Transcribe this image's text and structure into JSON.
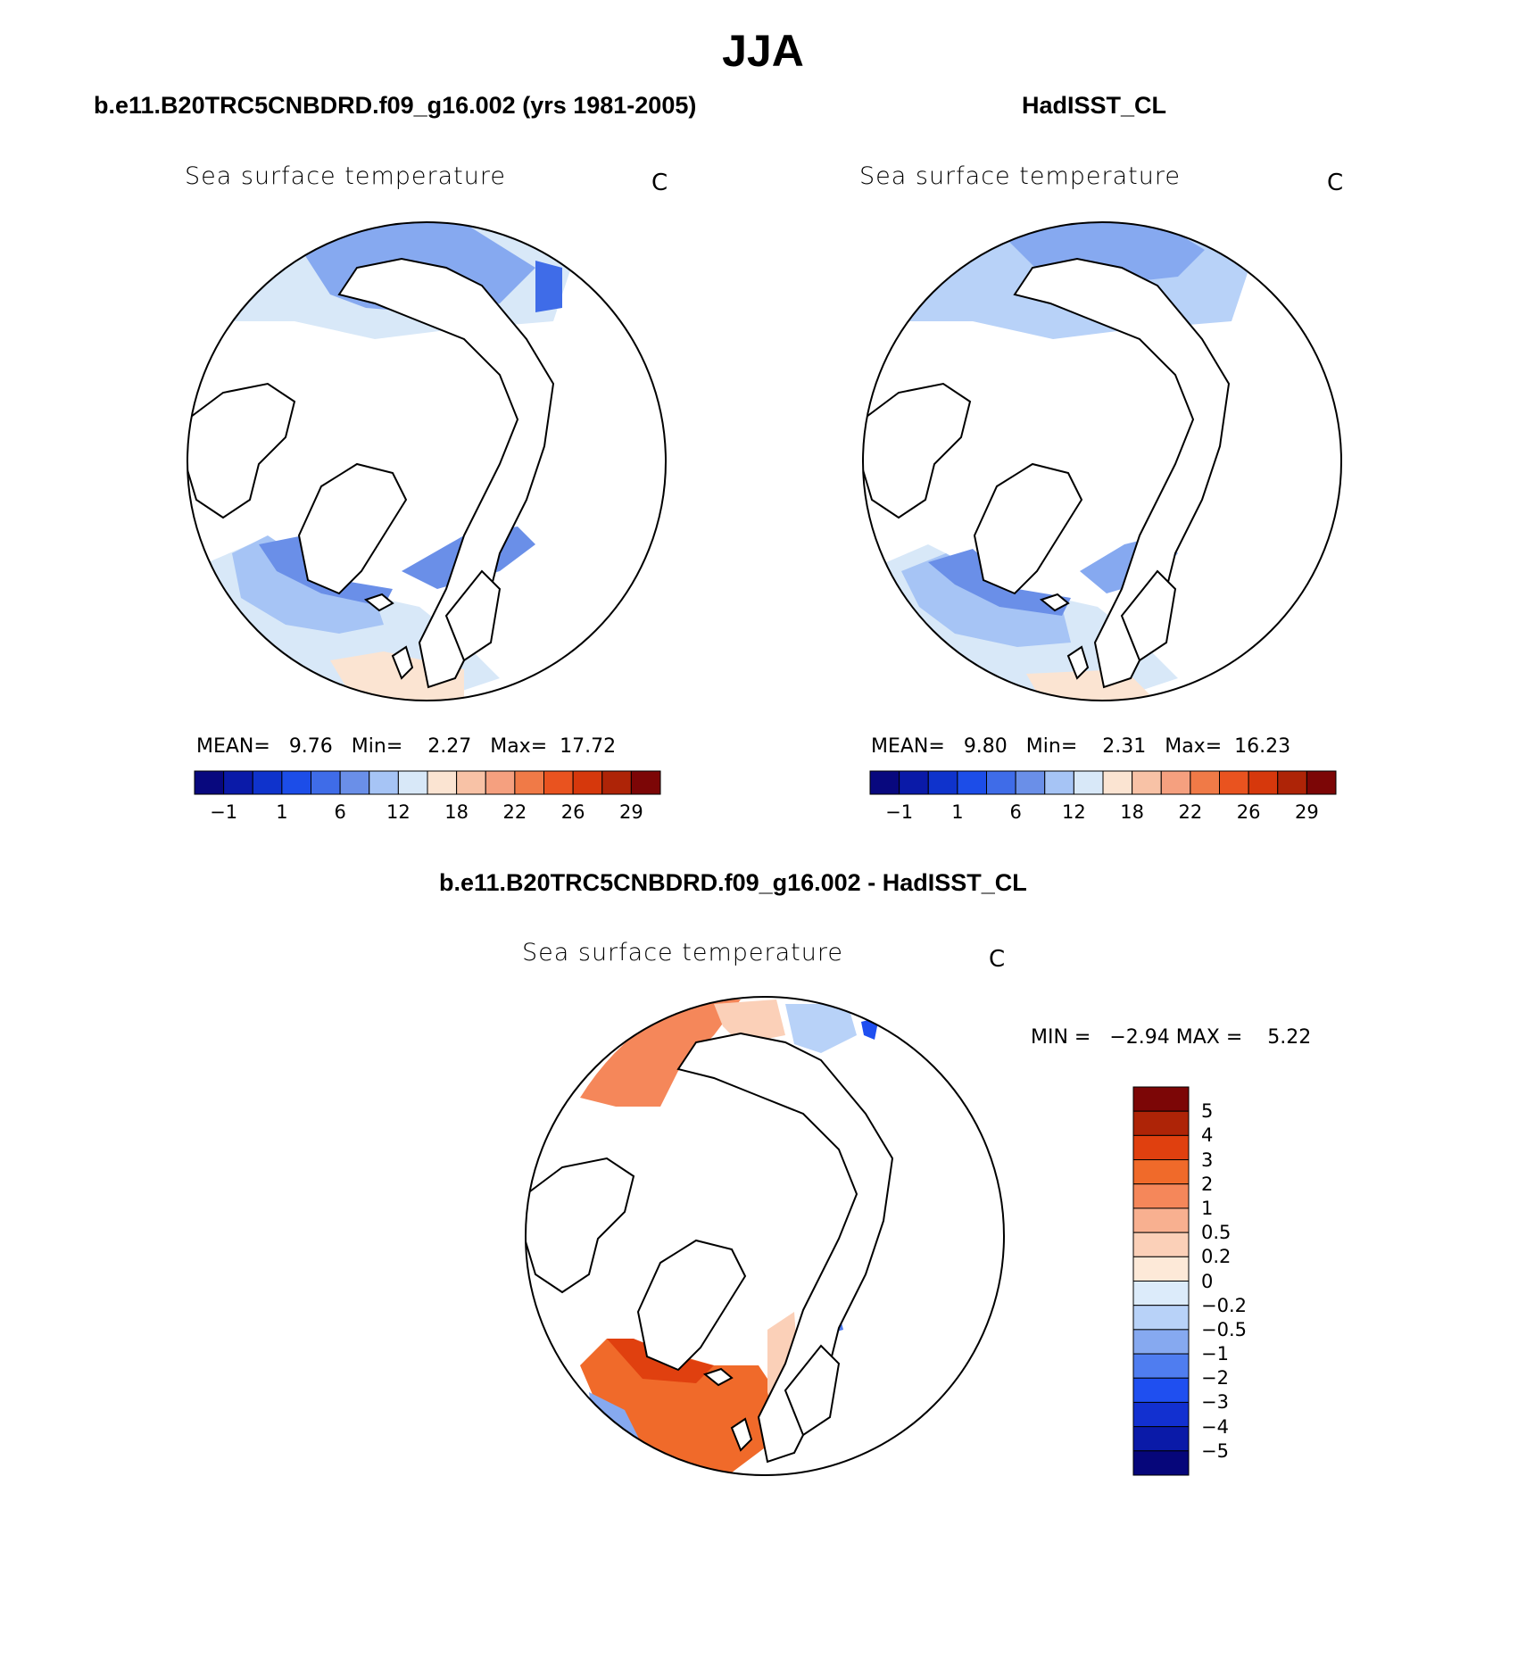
{
  "page": {
    "title": "JJA"
  },
  "panels": [
    {
      "header": "b.e11.B20TRC5CNBDRD.f09_g16.002 (yrs 1981-2005)",
      "plot_title": "Sea surface temperature",
      "unit": "C",
      "stats": {
        "mean_label": "MEAN=",
        "mean": "9.76",
        "min_label": "Min=",
        "min": "2.27",
        "max_label": "Max=",
        "max": "17.72"
      },
      "colorbar": {
        "colors": [
          "#08087e",
          "#0a1aa8",
          "#0f33cc",
          "#1c4de8",
          "#3f6ce8",
          "#6a8fe8",
          "#a6c4f5",
          "#d8e8f8",
          "#fbe4d2",
          "#f8c2a6",
          "#f5a07f",
          "#f07a47",
          "#e9531f",
          "#d6380c",
          "#ae2407",
          "#7c0606"
        ],
        "tick_labels": [
          "−1",
          "1",
          "6",
          "12",
          "18",
          "22",
          "26",
          "29"
        ]
      }
    },
    {
      "header": "HadISST_CL",
      "plot_title": "Sea surface temperature",
      "unit": "C",
      "stats": {
        "mean_label": "MEAN=",
        "mean": "9.80",
        "min_label": "Min=",
        "min": "2.31",
        "max_label": "Max=",
        "max": "16.23"
      },
      "colorbar": {
        "colors": [
          "#08087e",
          "#0a1aa8",
          "#0f33cc",
          "#1c4de8",
          "#3f6ce8",
          "#6a8fe8",
          "#a6c4f5",
          "#d8e8f8",
          "#fbe4d2",
          "#f8c2a6",
          "#f5a07f",
          "#f07a47",
          "#e9531f",
          "#d6380c",
          "#ae2407",
          "#7c0606"
        ],
        "tick_labels": [
          "−1",
          "1",
          "6",
          "12",
          "18",
          "22",
          "26",
          "29"
        ]
      }
    },
    {
      "header": "b.e11.B20TRC5CNBDRD.f09_g16.002 - HadISST_CL",
      "plot_title": "Sea surface temperature",
      "unit": "C",
      "stats": {
        "min_label": "MIN =",
        "min": "−2.94",
        "max_label": "MAX =",
        "max": "5.22"
      },
      "colorbar": {
        "colors": [
          "#7c0606",
          "#ae2407",
          "#e0400f",
          "#f06a2a",
          "#f5875a",
          "#f8b090",
          "#fbd0b8",
          "#fde9d8",
          "#dcebfa",
          "#b8d2f8",
          "#86a9f0",
          "#4f7df0",
          "#1f4ff0",
          "#1230d0",
          "#0a1aa8",
          "#06067a"
        ],
        "tick_labels": [
          "5",
          "4",
          "3",
          "2",
          "1",
          "0.5",
          "0.2",
          "0",
          "−0.2",
          "−0.5",
          "−1",
          "−2",
          "−3",
          "−4",
          "−5"
        ]
      }
    }
  ]
}
